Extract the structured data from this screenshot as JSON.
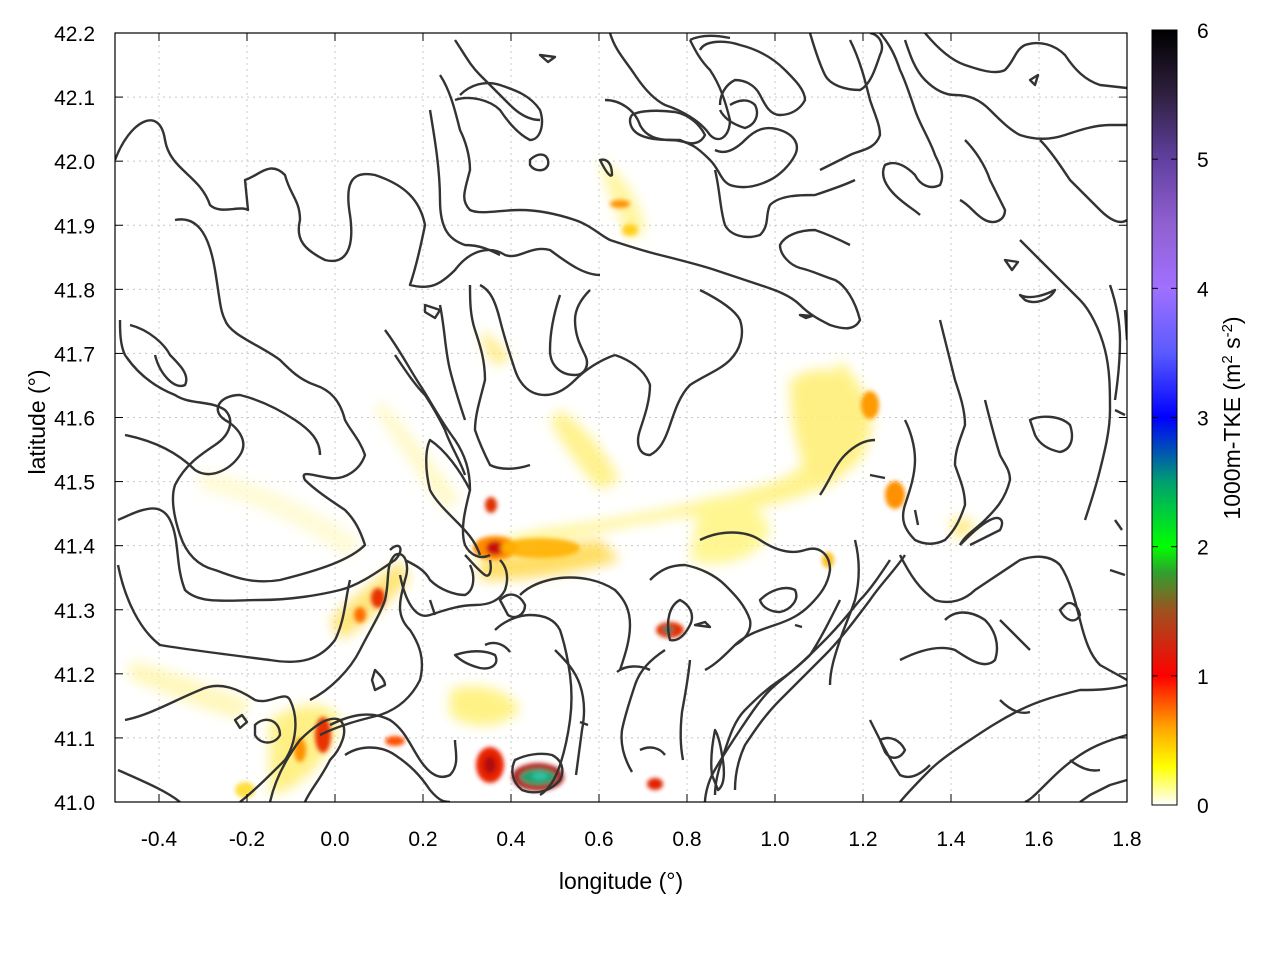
{
  "chart_data": {
    "type": "heatmap",
    "title": "",
    "xlabel": "longitude (°)",
    "ylabel": "latitude (°)",
    "colorbar_label_parts": {
      "base": "1000m-TKE (m",
      "sup1": "2",
      "mid": " s",
      "sup2": "-2",
      "end": ")"
    },
    "xlim": [
      -0.5,
      1.8
    ],
    "ylim": [
      41.0,
      42.2
    ],
    "x_ticks": [
      "-0.4",
      "-0.2",
      "0.0",
      "0.2",
      "0.4",
      "0.6",
      "0.8",
      "1.0",
      "1.2",
      "1.4",
      "1.6",
      "1.8"
    ],
    "x_tick_values": [
      -0.4,
      -0.2,
      0.0,
      0.2,
      0.4,
      0.6,
      0.8,
      1.0,
      1.2,
      1.4,
      1.6,
      1.8
    ],
    "y_ticks": [
      "41.0",
      "41.1",
      "41.2",
      "41.3",
      "41.4",
      "41.5",
      "41.6",
      "41.7",
      "41.8",
      "41.9",
      "42.0",
      "42.1",
      "42.2"
    ],
    "y_tick_values": [
      41.0,
      41.1,
      41.2,
      41.3,
      41.4,
      41.5,
      41.6,
      41.7,
      41.8,
      41.9,
      42.0,
      42.1,
      42.2
    ],
    "colorbar": {
      "range": [
        0,
        6
      ],
      "ticks": [
        "0",
        "1",
        "2",
        "3",
        "4",
        "5",
        "6"
      ],
      "tick_values": [
        0,
        1,
        2,
        3,
        4,
        5,
        6
      ],
      "stops": [
        {
          "v": 0.0,
          "color": "#ffffff"
        },
        {
          "v": 0.3,
          "color": "#ffff00"
        },
        {
          "v": 0.6,
          "color": "#ffa500"
        },
        {
          "v": 1.0,
          "color": "#ff0000"
        },
        {
          "v": 1.5,
          "color": "#a05020"
        },
        {
          "v": 1.8,
          "color": "#30a030"
        },
        {
          "v": 2.0,
          "color": "#00ff00"
        },
        {
          "v": 2.5,
          "color": "#00a070"
        },
        {
          "v": 3.0,
          "color": "#0000ff"
        },
        {
          "v": 3.5,
          "color": "#5a5aff"
        },
        {
          "v": 4.0,
          "color": "#a070ff"
        },
        {
          "v": 4.5,
          "color": "#9060d0"
        },
        {
          "v": 5.0,
          "color": "#6040a0"
        },
        {
          "v": 5.5,
          "color": "#302040"
        },
        {
          "v": 6.0,
          "color": "#000000"
        }
      ]
    },
    "grid": true,
    "grid_color": "#c8c8c8",
    "contour_color": "#333333",
    "tke_hotspots": [
      {
        "lon": 0.36,
        "lat": 41.4,
        "tke": 1.0
      },
      {
        "lon": 0.45,
        "lat": 41.04,
        "tke": 2.3
      },
      {
        "lon": 0.34,
        "lat": 41.06,
        "tke": 1.1
      },
      {
        "lon": 0.74,
        "lat": 41.27,
        "tke": 1.3
      },
      {
        "lon": 0.72,
        "lat": 41.03,
        "tke": 0.9
      },
      {
        "lon": -0.03,
        "lat": 41.1,
        "tke": 0.8
      },
      {
        "lon": 0.09,
        "lat": 41.32,
        "tke": 0.7
      },
      {
        "lon": 0.5,
        "lat": 41.39,
        "tke": 0.6
      },
      {
        "lon": 0.58,
        "lat": 41.54,
        "tke": 0.4
      },
      {
        "lon": 1.18,
        "lat": 41.62,
        "tke": 0.5
      },
      {
        "lon": 1.27,
        "lat": 41.47,
        "tke": 0.6
      },
      {
        "lon": 0.14,
        "lat": 41.1,
        "tke": 0.5
      },
      {
        "lon": 0.64,
        "lat": 41.93,
        "tke": 0.5
      },
      {
        "lon": -0.21,
        "lat": 41.03,
        "tke": 0.3
      },
      {
        "lon": 0.89,
        "lat": 41.49,
        "tke": 0.3
      },
      {
        "lon": 0.35,
        "lat": 41.15,
        "tke": 0.3
      }
    ]
  }
}
